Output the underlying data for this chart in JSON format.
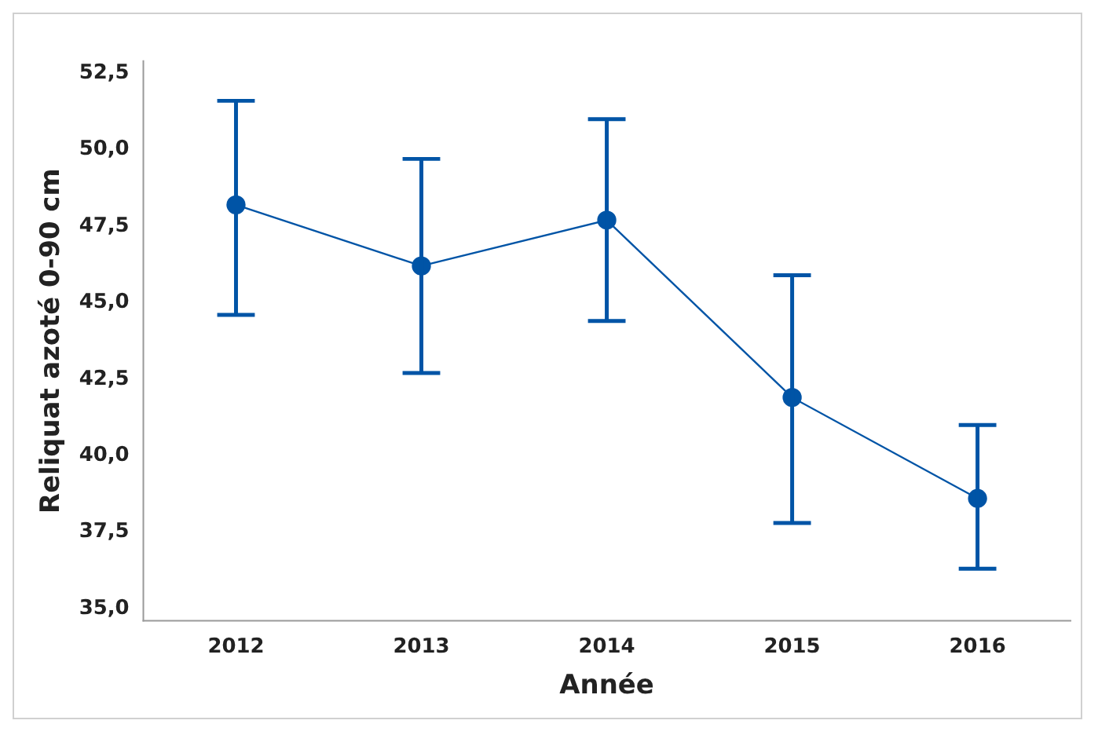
{
  "chart_data": {
    "type": "line",
    "xlabel": "Année",
    "ylabel": "Reliquat azoté 0-90 cm",
    "categories": [
      "2012",
      "2013",
      "2014",
      "2015",
      "2016"
    ],
    "series": [
      {
        "color": "#0054a6",
        "values": [
          48.2,
          46.2,
          47.7,
          41.9,
          38.6
        ],
        "errors": [
          [
            44.6,
            51.6
          ],
          [
            42.7,
            49.7
          ],
          [
            44.4,
            51.0
          ],
          [
            37.8,
            45.9
          ],
          [
            36.3,
            41.0
          ]
        ]
      }
    ],
    "marker": "circle",
    "line_style": "solid",
    "grid": false,
    "legend": false,
    "ylim": [
      34.6,
      52.9
    ],
    "yticks": [
      {
        "value": 35,
        "label": "35,0"
      },
      {
        "value": 37.5,
        "label": "37,5"
      },
      {
        "value": 40,
        "label": "40,0"
      },
      {
        "value": 42.5,
        "label": "42,5"
      },
      {
        "value": 45,
        "label": "45,0"
      },
      {
        "value": 47.5,
        "label": "47,5"
      },
      {
        "value": 50,
        "label": "50,0"
      },
      {
        "value": 52.5,
        "label": "52,5"
      }
    ]
  }
}
